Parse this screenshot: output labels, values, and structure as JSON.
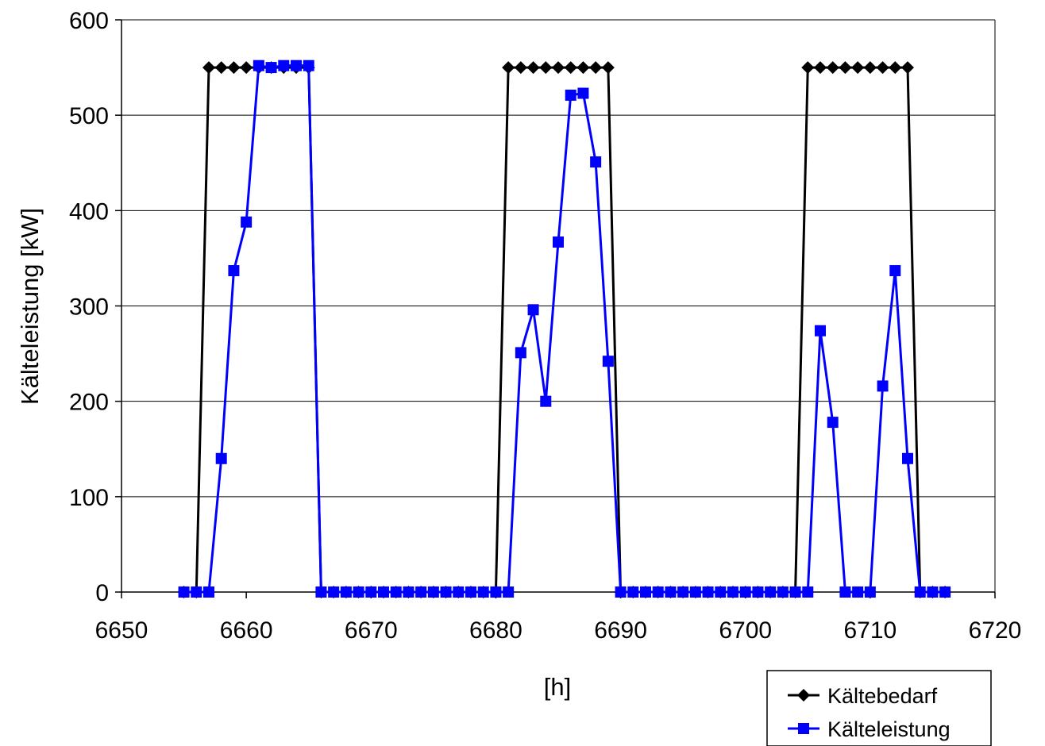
{
  "chart_data": {
    "type": "line",
    "title": "",
    "xlabel": "[h]",
    "ylabel": "Kälteleistung [kW]",
    "xlim": [
      6650,
      6720
    ],
    "ylim": [
      0,
      600
    ],
    "xticks": [
      6650,
      6660,
      6670,
      6680,
      6690,
      6700,
      6710,
      6720
    ],
    "yticks": [
      0,
      100,
      200,
      300,
      400,
      500,
      600
    ],
    "grid": "horizontal",
    "legend_position": "bottom-right",
    "series": [
      {
        "name": "Kältebedarf",
        "color": "#000000",
        "marker": "diamond",
        "x": [
          6655,
          6656,
          6657,
          6658,
          6659,
          6660,
          6661,
          6662,
          6663,
          6664,
          6665,
          6666,
          6667,
          6668,
          6669,
          6670,
          6671,
          6672,
          6673,
          6674,
          6675,
          6676,
          6677,
          6678,
          6679,
          6680,
          6681,
          6682,
          6683,
          6684,
          6685,
          6686,
          6687,
          6688,
          6689,
          6690,
          6691,
          6692,
          6693,
          6694,
          6695,
          6696,
          6697,
          6698,
          6699,
          6700,
          6701,
          6702,
          6703,
          6704,
          6705,
          6706,
          6707,
          6708,
          6709,
          6710,
          6711,
          6712,
          6713,
          6714,
          6715,
          6716
        ],
        "y": [
          0,
          0,
          550,
          550,
          550,
          550,
          550,
          550,
          550,
          550,
          550,
          0,
          0,
          0,
          0,
          0,
          0,
          0,
          0,
          0,
          0,
          0,
          0,
          0,
          0,
          0,
          550,
          550,
          550,
          550,
          550,
          550,
          550,
          550,
          550,
          0,
          0,
          0,
          0,
          0,
          0,
          0,
          0,
          0,
          0,
          0,
          0,
          0,
          0,
          0,
          550,
          550,
          550,
          550,
          550,
          550,
          550,
          550,
          550,
          0,
          0,
          0
        ]
      },
      {
        "name": "Kälteleistung",
        "color": "#0000ff",
        "marker": "square",
        "x": [
          6655,
          6656,
          6657,
          6658,
          6659,
          6660,
          6661,
          6662,
          6663,
          6664,
          6665,
          6666,
          6667,
          6668,
          6669,
          6670,
          6671,
          6672,
          6673,
          6674,
          6675,
          6676,
          6677,
          6678,
          6679,
          6680,
          6681,
          6682,
          6683,
          6684,
          6685,
          6686,
          6687,
          6688,
          6689,
          6690,
          6691,
          6692,
          6693,
          6694,
          6695,
          6696,
          6697,
          6698,
          6699,
          6700,
          6701,
          6702,
          6703,
          6704,
          6705,
          6706,
          6707,
          6708,
          6709,
          6710,
          6711,
          6712,
          6713,
          6714,
          6715,
          6716
        ],
        "y": [
          0,
          0,
          0,
          140,
          337,
          388,
          552,
          550,
          552,
          552,
          552,
          0,
          0,
          0,
          0,
          0,
          0,
          0,
          0,
          0,
          0,
          0,
          0,
          0,
          0,
          0,
          0,
          251,
          296,
          200,
          367,
          521,
          523,
          451,
          242,
          0,
          0,
          0,
          0,
          0,
          0,
          0,
          0,
          0,
          0,
          0,
          0,
          0,
          0,
          0,
          0,
          274,
          178,
          0,
          0,
          0,
          216,
          337,
          140,
          0,
          0,
          0
        ]
      }
    ]
  }
}
